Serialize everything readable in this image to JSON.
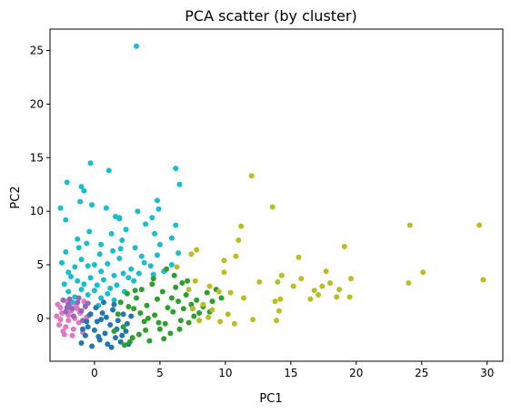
{
  "chart_data": {
    "type": "scatter",
    "title": "PCA scatter (by cluster)",
    "xlabel": "PC1",
    "ylabel": "PC2",
    "xlim": [
      -3.4,
      31.2
    ],
    "ylim": [
      -4.0,
      27.0
    ],
    "xticks": [
      0,
      5,
      10,
      15,
      20,
      25,
      30
    ],
    "yticks": [
      0,
      5,
      10,
      15,
      20,
      25
    ],
    "grid": false,
    "series": [
      {
        "color": "#17becf",
        "points": [
          [
            3.2,
            25.4
          ],
          [
            -0.3,
            14.5
          ],
          [
            1.1,
            13.8
          ],
          [
            6.2,
            14.0
          ],
          [
            6.5,
            12.5
          ],
          [
            -2.1,
            12.7
          ],
          [
            -1.0,
            12.3
          ],
          [
            -0.8,
            11.9
          ],
          [
            -1.1,
            10.9
          ],
          [
            -2.6,
            10.3
          ],
          [
            0.9,
            10.3
          ],
          [
            -0.2,
            10.6
          ],
          [
            4.8,
            11.0
          ],
          [
            3.3,
            10.0
          ],
          [
            1.6,
            9.5
          ],
          [
            1.9,
            9.4
          ],
          [
            4.9,
            10.2
          ],
          [
            4.4,
            9.4
          ],
          [
            3.9,
            8.8
          ],
          [
            6.2,
            8.7
          ],
          [
            -2.2,
            9.2
          ],
          [
            -0.4,
            8.1
          ],
          [
            2.4,
            8.3
          ],
          [
            5.9,
            7.5
          ],
          [
            4.6,
            7.9
          ],
          [
            1.3,
            7.9
          ],
          [
            -1.3,
            7.4
          ],
          [
            0.5,
            6.9
          ],
          [
            3.1,
            6.6
          ],
          [
            5.0,
            6.9
          ],
          [
            2.0,
            6.5
          ],
          [
            6.4,
            6.1
          ],
          [
            3.6,
            5.8
          ],
          [
            4.8,
            5.9
          ],
          [
            1.9,
            5.6
          ],
          [
            5.9,
            5.0
          ],
          [
            4.3,
            4.9
          ],
          [
            2.8,
            4.6
          ],
          [
            -2.5,
            5.2
          ],
          [
            -2.0,
            4.3
          ],
          [
            -1.5,
            4.8
          ],
          [
            -1.0,
            5.5
          ],
          [
            -0.5,
            4.9
          ],
          [
            0.0,
            5.0
          ],
          [
            0.5,
            4.4
          ],
          [
            1.0,
            5.1
          ],
          [
            1.5,
            4.0
          ],
          [
            2.2,
            4.2
          ],
          [
            2.6,
            3.8
          ],
          [
            3.0,
            3.5
          ],
          [
            -2.3,
            3.2
          ],
          [
            -1.8,
            3.9
          ],
          [
            -1.3,
            3.5
          ],
          [
            -0.8,
            3.2
          ],
          [
            -0.3,
            3.8
          ],
          [
            0.2,
            3.1
          ],
          [
            0.7,
            3.6
          ],
          [
            1.2,
            2.8
          ],
          [
            1.7,
            3.1
          ],
          [
            2.3,
            2.5
          ],
          [
            -2.0,
            2.5
          ],
          [
            -1.5,
            2.0
          ],
          [
            -1.0,
            2.7
          ],
          [
            -0.5,
            2.2
          ],
          [
            0.0,
            2.6
          ],
          [
            0.5,
            1.9
          ],
          [
            1.0,
            2.3
          ],
          [
            1.5,
            1.7
          ],
          [
            -1.7,
            1.5
          ],
          [
            -0.7,
            1.3
          ],
          [
            0.3,
            1.2
          ],
          [
            -2.2,
            6.2
          ],
          [
            -1.2,
            6.6
          ],
          [
            0.4,
            6.0
          ],
          [
            1.4,
            6.3
          ],
          [
            2.1,
            7.3
          ],
          [
            -0.6,
            7.0
          ],
          [
            1.9,
            9.3
          ],
          [
            3.8,
            5.2
          ],
          [
            4.5,
            4.1
          ],
          [
            5.3,
            4.4
          ],
          [
            3.4,
            4.2
          ]
        ]
      },
      {
        "color": "#e377c2",
        "points": [
          [
            -2.9,
            0.2
          ],
          [
            -2.6,
            1.0
          ],
          [
            -2.7,
            -0.6
          ],
          [
            -2.4,
            -1.2
          ],
          [
            -2.1,
            1.6
          ],
          [
            -2.0,
            -0.2
          ],
          [
            -1.8,
            0.7
          ],
          [
            -1.6,
            -1.0
          ],
          [
            -1.4,
            1.2
          ],
          [
            -1.2,
            -0.4
          ],
          [
            -1.1,
            0.5
          ],
          [
            -0.9,
            -1.3
          ],
          [
            -0.8,
            1.6
          ],
          [
            -0.6,
            0.1
          ],
          [
            -2.5,
            0.5
          ],
          [
            -2.2,
            -0.8
          ],
          [
            -1.9,
            1.2
          ],
          [
            -1.5,
            0.0
          ],
          [
            -2.8,
            1.3
          ],
          [
            -2.3,
            -1.5
          ],
          [
            -1.7,
            -1.6
          ],
          [
            -1.3,
            0.9
          ],
          [
            -2.6,
            -0.1
          ],
          [
            -2.0,
            0.3
          ]
        ]
      },
      {
        "color": "#9467bd",
        "points": [
          [
            -2.4,
            1.7
          ],
          [
            -2.0,
            1.3
          ],
          [
            -1.7,
            0.9
          ],
          [
            -1.3,
            1.5
          ],
          [
            -1.0,
            0.7
          ],
          [
            -0.7,
            1.1
          ],
          [
            -0.4,
            0.3
          ],
          [
            -2.2,
            0.6
          ],
          [
            -1.6,
            0.2
          ],
          [
            -0.9,
            -0.2
          ],
          [
            -1.9,
            1.8
          ],
          [
            -1.2,
            1.9
          ],
          [
            -0.5,
            1.4
          ],
          [
            -2.1,
            1.0
          ]
        ]
      },
      {
        "color": "#1f77b4",
        "points": [
          [
            -1.0,
            -2.3
          ],
          [
            -0.7,
            -1.6
          ],
          [
            -0.5,
            -0.8
          ],
          [
            -0.2,
            -2.6
          ],
          [
            0.0,
            -1.1
          ],
          [
            0.2,
            -0.3
          ],
          [
            0.4,
            -2.0
          ],
          [
            0.6,
            0.5
          ],
          [
            0.8,
            -1.4
          ],
          [
            1.0,
            -2.4
          ],
          [
            1.2,
            -0.6
          ],
          [
            1.4,
            0.8
          ],
          [
            1.6,
            -1.8
          ],
          [
            1.8,
            -0.2
          ],
          [
            2.0,
            -2.2
          ],
          [
            2.2,
            0.4
          ],
          [
            2.4,
            -1.2
          ],
          [
            2.6,
            -2.4
          ],
          [
            2.8,
            0.2
          ],
          [
            -0.3,
            0.4
          ],
          [
            0.1,
            1.0
          ],
          [
            0.5,
            -0.1
          ],
          [
            0.9,
            0.1
          ],
          [
            1.3,
            -2.7
          ],
          [
            1.7,
            -1.0
          ],
          [
            2.1,
            -1.6
          ],
          [
            0.3,
            -1.7
          ],
          [
            -0.6,
            -0.3
          ],
          [
            1.5,
            1.3
          ],
          [
            0.7,
            1.5
          ],
          [
            -0.9,
            -1.0
          ],
          [
            2.5,
            -0.5
          ]
        ]
      },
      {
        "color": "#2ca02c",
        "points": [
          [
            1.5,
            -1.2
          ],
          [
            1.8,
            0.4
          ],
          [
            2.0,
            1.5
          ],
          [
            2.2,
            -0.8
          ],
          [
            2.5,
            2.3
          ],
          [
            2.7,
            -2.2
          ],
          [
            3.0,
            0.9
          ],
          [
            3.2,
            1.9
          ],
          [
            3.4,
            -1.5
          ],
          [
            3.6,
            2.7
          ],
          [
            3.8,
            -0.3
          ],
          [
            4.0,
            1.2
          ],
          [
            4.2,
            -2.1
          ],
          [
            4.4,
            3.2
          ],
          [
            4.6,
            0.3
          ],
          [
            4.8,
            1.8
          ],
          [
            5.0,
            -1.0
          ],
          [
            5.2,
            2.5
          ],
          [
            5.4,
            -0.5
          ],
          [
            5.6,
            1.0
          ],
          [
            5.8,
            -1.4
          ],
          [
            6.0,
            0.6
          ],
          [
            6.2,
            2.9
          ],
          [
            6.4,
            1.6
          ],
          [
            6.6,
            -0.2
          ],
          [
            6.8,
            0.9
          ],
          [
            7.0,
            2.2
          ],
          [
            7.2,
            -0.4
          ],
          [
            7.4,
            1.3
          ],
          [
            7.6,
            0.2
          ],
          [
            7.8,
            1.7
          ],
          [
            8.0,
            0.5
          ],
          [
            8.3,
            1.1
          ],
          [
            8.6,
            2.4
          ],
          [
            9.0,
            1.6
          ],
          [
            9.3,
            2.7
          ],
          [
            9.7,
            1.9
          ],
          [
            5.5,
            4.6
          ],
          [
            6.1,
            4.0
          ],
          [
            7.1,
            3.5
          ],
          [
            4.5,
            3.7
          ],
          [
            3.1,
            2.6
          ],
          [
            2.6,
            1.1
          ],
          [
            3.9,
            -1.1
          ],
          [
            5.3,
            -1.9
          ],
          [
            2.9,
            -1.8
          ],
          [
            6.7,
            3.3
          ],
          [
            8.8,
            0.6
          ],
          [
            4.1,
            0.0
          ],
          [
            5.9,
            1.9
          ],
          [
            3.5,
            0.5
          ],
          [
            4.9,
            -0.4
          ],
          [
            6.5,
            -1.0
          ],
          [
            7.5,
            0.9
          ],
          [
            2.3,
            -2.5
          ]
        ]
      },
      {
        "color": "#bcbd22",
        "points": [
          [
            12.0,
            13.3
          ],
          [
            13.6,
            10.4
          ],
          [
            11.2,
            8.6
          ],
          [
            11.0,
            7.3
          ],
          [
            7.8,
            6.4
          ],
          [
            7.4,
            6.0
          ],
          [
            10.8,
            5.8
          ],
          [
            9.9,
            5.4
          ],
          [
            6.3,
            4.8
          ],
          [
            9.9,
            4.3
          ],
          [
            7.7,
            3.5
          ],
          [
            8.8,
            3.0
          ],
          [
            7.2,
            2.7
          ],
          [
            9.5,
            2.5
          ],
          [
            10.4,
            2.4
          ],
          [
            12.6,
            3.4
          ],
          [
            11.4,
            1.9
          ],
          [
            8.3,
            1.3
          ],
          [
            9.0,
            0.8
          ],
          [
            10.2,
            0.4
          ],
          [
            7.5,
            0.9
          ],
          [
            8.0,
            -0.2
          ],
          [
            8.7,
            0.1
          ],
          [
            9.6,
            -0.3
          ],
          [
            10.7,
            -0.5
          ],
          [
            12.1,
            -0.1
          ],
          [
            14.3,
            4.0
          ],
          [
            14.0,
            3.4
          ],
          [
            15.2,
            3.0
          ],
          [
            15.8,
            3.7
          ],
          [
            13.8,
            1.6
          ],
          [
            14.2,
            1.8
          ],
          [
            14.1,
            0.7
          ],
          [
            13.9,
            -0.2
          ],
          [
            15.6,
            5.7
          ],
          [
            17.4,
            3.0
          ],
          [
            16.8,
            2.6
          ],
          [
            17.1,
            2.2
          ],
          [
            16.5,
            1.8
          ],
          [
            17.7,
            4.4
          ],
          [
            18.0,
            3.3
          ],
          [
            18.7,
            2.7
          ],
          [
            18.5,
            2.0
          ],
          [
            19.1,
            6.7
          ],
          [
            19.6,
            3.7
          ],
          [
            19.5,
            2.0
          ],
          [
            24.1,
            8.7
          ],
          [
            24.0,
            3.3
          ],
          [
            25.1,
            4.3
          ],
          [
            29.4,
            8.7
          ],
          [
            29.7,
            3.6
          ]
        ]
      }
    ]
  }
}
